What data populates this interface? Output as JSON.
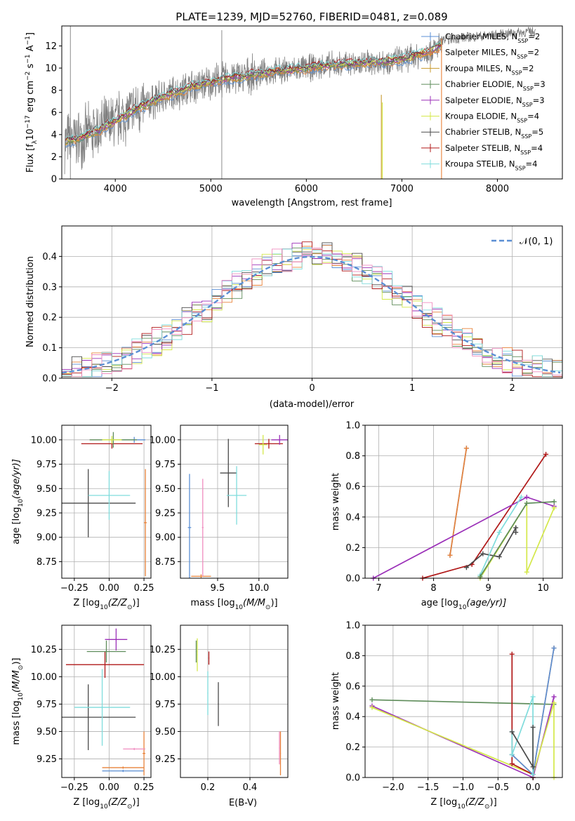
{
  "figure": {
    "title": "PLATE=1239, MJD=52760, FIBERID=0481, z=0.089"
  },
  "chart_data": [
    {
      "id": "spectrum",
      "type": "line",
      "title": "PLATE=1239, MJD=52760, FIBERID=0481, z=0.089",
      "xlabel": "wavelength [Angstrom, rest frame]",
      "ylabel_parts": [
        "Flux [f",
        "λ",
        "10",
        "−17",
        " erg cm",
        "−2",
        " s",
        "−1",
        " A",
        "−1",
        "]"
      ],
      "xlim": [
        3440,
        8680
      ],
      "ylim": [
        0,
        13.8
      ],
      "xticks": [
        "4000",
        "5000",
        "6000",
        "7000",
        "8000"
      ],
      "yticks": [
        "0",
        "2",
        "4",
        "6",
        "8",
        "10",
        "12"
      ],
      "legend_position": "upper right",
      "legend": [
        {
          "name_pre": "Chabrier MILES, N",
          "sub": "SSP",
          "name_post": "=2",
          "color": "#5b8fd4"
        },
        {
          "name_pre": "Salpeter MILES, N",
          "sub": "SSP",
          "name_post": "=2",
          "color": "#e8833a"
        },
        {
          "name_pre": "Kroupa MILES, N",
          "sub": "SSP",
          "name_post": "=2",
          "color": "#c79a2e"
        },
        {
          "name_pre": "Chabrier ELODIE, N",
          "sub": "SSP",
          "name_post": "=3",
          "color": "#5e8c5a"
        },
        {
          "name_pre": "Salpeter ELODIE, N",
          "sub": "SSP",
          "name_post": "=3",
          "color": "#9b30b8"
        },
        {
          "name_pre": "Kroupa ELODIE, N",
          "sub": "SSP",
          "name_post": "=4",
          "color": "#d4e84a"
        },
        {
          "name_pre": "Chabrier STELIB, N",
          "sub": "SSP",
          "name_post": "=5",
          "color": "#4a4a4a"
        },
        {
          "name_pre": "Salpeter STELIB, N",
          "sub": "SSP",
          "name_post": "=4",
          "color": "#b01818"
        },
        {
          "name_pre": "Kroupa STELIB, N",
          "sub": "SSP",
          "name_post": "=4",
          "color": "#7fdcdc"
        }
      ],
      "data_trend": {
        "wavelength": [
          3480,
          3600,
          3800,
          4000,
          4200,
          4500,
          4800,
          5000,
          5200,
          5500,
          5800,
          6000,
          6200,
          6500,
          6800,
          7000,
          7200,
          7400
        ],
        "flux": [
          3.4,
          3.6,
          4.3,
          5.2,
          6.2,
          7.4,
          8.3,
          8.7,
          9.1,
          9.5,
          9.8,
          10.0,
          10.2,
          10.4,
          10.6,
          10.8,
          11.2,
          12.0
        ],
        "observed_tail_wavelength": [
          7400,
          7700,
          8000,
          8200,
          8400
        ],
        "observed_tail_flux": [
          12.5,
          12.8,
          13.0,
          13.2,
          13.3
        ]
      }
    },
    {
      "id": "residuals",
      "type": "line",
      "xlabel": "(data-model)/error",
      "ylabel": "Normed distribution",
      "xlim": [
        -2.5,
        2.5
      ],
      "ylim": [
        0,
        0.5
      ],
      "xticks": [
        "−2",
        "−1",
        "0",
        "1",
        "2"
      ],
      "yticks": [
        "0.0",
        "0.1",
        "0.2",
        "0.3",
        "0.4"
      ],
      "legend_position": "upper right",
      "legend": [
        {
          "name": "𝒩(0, 1)",
          "color": "#5b8fd4"
        }
      ],
      "normal_curve": {
        "mean": 0,
        "sigma": 1
      }
    },
    {
      "id": "age-vs-Z",
      "type": "scatter",
      "xlabel_parts": [
        "Z [log",
        "10",
        "(Z/Z",
        "⊙",
        ")]"
      ],
      "ylabel_parts": [
        "age  [log",
        "10",
        "(age/yr)]"
      ],
      "xlim": [
        -0.34,
        0.3
      ],
      "ylim": [
        8.58,
        10.15
      ],
      "xticks": [
        "−0.25",
        "0.00",
        "0.25"
      ],
      "yticks": [
        "8.75",
        "9.00",
        "9.25",
        "9.50",
        "9.75",
        "10.00"
      ],
      "points": [
        {
          "x": 0.18,
          "xerr": 0.08,
          "y": 10.0,
          "yerr": 0.03,
          "color": "#5b8fd4"
        },
        {
          "x": 0.26,
          "xerr": 0.01,
          "y": 9.15,
          "yerr": 0.55,
          "color": "#e8833a"
        },
        {
          "x": 0.02,
          "xerr": 0.22,
          "y": 9.96,
          "yerr": 0.05,
          "color": "#b01818"
        },
        {
          "x": -0.15,
          "xerr": 0.34,
          "y": 9.35,
          "yerr": 0.35,
          "color": "#4a4a4a"
        },
        {
          "x": 0.03,
          "xerr": 0.17,
          "y": 10.0,
          "yerr": 0.08,
          "color": "#5e8c5a"
        },
        {
          "x": 0.0,
          "xerr": 0.15,
          "y": 9.43,
          "yerr": 0.25,
          "color": "#7fdcdc"
        },
        {
          "x": 0.02,
          "xerr": 0.07,
          "y": 10.0,
          "yerr": 0.04,
          "color": "#d4e84a"
        }
      ]
    },
    {
      "id": "age-vs-mass",
      "type": "scatter",
      "xlabel_parts": [
        "mass [log",
        "10",
        "(M/M",
        "⊙",
        ")]"
      ],
      "xlim": [
        9.05,
        10.35
      ],
      "ylim": [
        8.58,
        10.15
      ],
      "xticks": [
        "9.5",
        "10.0"
      ],
      "yticks": [
        "8.75",
        "9.00",
        "9.25",
        "9.50",
        "9.75",
        "10.00"
      ],
      "points": [
        {
          "x": 9.16,
          "xerr": 0.02,
          "y": 9.1,
          "yerr": 0.55,
          "color": "#5b8fd4"
        },
        {
          "x": 9.3,
          "xerr": 0.12,
          "y": 8.6,
          "yerr": 0.02,
          "color": "#e8833a"
        },
        {
          "x": 9.32,
          "xerr": 0.01,
          "y": 9.1,
          "yerr": 0.5,
          "color": "#f08ec0"
        },
        {
          "x": 10.12,
          "xerr": 0.17,
          "y": 9.96,
          "yerr": 0.05,
          "color": "#b01818"
        },
        {
          "x": 9.63,
          "xerr": 0.1,
          "y": 9.66,
          "yerr": 0.35,
          "color": "#4a4a4a"
        },
        {
          "x": 9.73,
          "xerr": 0.12,
          "y": 9.43,
          "yerr": 0.3,
          "color": "#7fdcdc"
        },
        {
          "x": 10.25,
          "xerr": 0.1,
          "y": 10.0,
          "yerr": 0.05,
          "color": "#9b30b8"
        },
        {
          "x": 10.05,
          "xerr": 0.05,
          "y": 9.95,
          "yerr": 0.1,
          "color": "#d4e84a"
        }
      ]
    },
    {
      "id": "weight-vs-age",
      "type": "line",
      "xlabel_parts": [
        "age  [log",
        "10",
        "(age/yr)]"
      ],
      "ylabel": "mass weight",
      "xlim": [
        6.75,
        10.35
      ],
      "ylim": [
        0,
        1.0
      ],
      "xticks": [
        "7",
        "8",
        "9",
        "10"
      ],
      "yticks": [
        "0.0",
        "0.2",
        "0.4",
        "0.6",
        "0.8",
        "1.0"
      ],
      "series": [
        {
          "color": "#5b8fd4",
          "points": [
            [
              8.3,
              0.15
            ],
            [
              8.6,
              0.85
            ]
          ]
        },
        {
          "color": "#e8833a",
          "points": [
            [
              8.3,
              0.15
            ],
            [
              8.6,
              0.85
            ]
          ]
        },
        {
          "color": "#b01818",
          "points": [
            [
              7.8,
              0.0
            ],
            [
              8.7,
              0.09
            ],
            [
              10.05,
              0.81
            ]
          ]
        },
        {
          "color": "#9b30b8",
          "points": [
            [
              6.9,
              0.0
            ],
            [
              9.7,
              0.53
            ],
            [
              10.2,
              0.47
            ]
          ]
        },
        {
          "color": "#d4e84a",
          "points": [
            [
              8.85,
              0.0
            ],
            [
              9.7,
              0.49
            ],
            [
              9.7,
              0.04
            ],
            [
              10.2,
              0.46
            ]
          ]
        },
        {
          "color": "#4a4a4a",
          "points": [
            [
              8.6,
              0.07
            ],
            [
              8.9,
              0.16
            ],
            [
              9.2,
              0.14
            ],
            [
              9.5,
              0.33
            ],
            [
              9.5,
              0.3
            ]
          ]
        },
        {
          "color": "#7fdcdc",
          "points": [
            [
              8.85,
              0.02
            ],
            [
              9.2,
              0.3
            ],
            [
              9.6,
              0.53
            ]
          ]
        },
        {
          "color": "#5e8c5a",
          "points": [
            [
              8.85,
              0.01
            ],
            [
              9.7,
              0.49
            ],
            [
              10.2,
              0.5
            ]
          ]
        }
      ]
    },
    {
      "id": "mass-vs-Z",
      "type": "scatter",
      "xlabel_parts": [
        "Z [log",
        "10",
        "(Z/Z",
        "⊙",
        ")]"
      ],
      "ylabel_parts": [
        "mass [log",
        "10",
        "(M/M",
        "⊙",
        ")]"
      ],
      "xlim": [
        -0.34,
        0.3
      ],
      "ylim": [
        9.08,
        10.47
      ],
      "xticks": [
        "−0.25",
        "0.00",
        "0.25"
      ],
      "yticks": [
        "9.25",
        "9.50",
        "9.75",
        "10.00",
        "10.25"
      ],
      "points": [
        {
          "x": 0.1,
          "xerr": 0.15,
          "y": 9.14,
          "yerr": 0.01,
          "color": "#5b8fd4"
        },
        {
          "x": 0.1,
          "xerr": 0.15,
          "y": 9.17,
          "yerr": 0.01,
          "color": "#e8833a"
        },
        {
          "x": 0.25,
          "xerr": 0.01,
          "y": 9.3,
          "yerr": 0.2,
          "color": "#e8833a"
        },
        {
          "x": 0.18,
          "xerr": 0.08,
          "y": 9.34,
          "yerr": 0.01,
          "color": "#f08ec0"
        },
        {
          "x": -0.03,
          "xerr": 0.28,
          "y": 10.11,
          "yerr": 0.12,
          "color": "#b01818"
        },
        {
          "x": -0.15,
          "xerr": 0.34,
          "y": 9.63,
          "yerr": 0.3,
          "color": "#4a4a4a"
        },
        {
          "x": -0.05,
          "xerr": 0.2,
          "y": 9.72,
          "yerr": 0.35,
          "color": "#7fdcdc"
        },
        {
          "x": -0.02,
          "xerr": 0.14,
          "y": 10.23,
          "yerr": 0.1,
          "color": "#5e8c5a"
        },
        {
          "x": 0.05,
          "xerr": 0.08,
          "y": 10.34,
          "yerr": 0.1,
          "color": "#9b30b8"
        }
      ]
    },
    {
      "id": "mass-vs-EBV",
      "type": "scatter",
      "xlabel": "E(B-V)",
      "xlim": [
        0.07,
        0.58
      ],
      "ylim": [
        9.08,
        10.47
      ],
      "xticks": [
        "0.2",
        "0.4"
      ],
      "yticks": [
        "9.25",
        "9.50",
        "9.75",
        "10.00",
        "10.25"
      ],
      "points": [
        {
          "x": 0.545,
          "xerr": 0.002,
          "y": 9.3,
          "yerr": 0.2,
          "color": "#e8833a"
        },
        {
          "x": 0.54,
          "xerr": 0.002,
          "y": 9.35,
          "yerr": 0.15,
          "color": "#f08ec0"
        },
        {
          "x": 0.25,
          "xerr": 0.002,
          "y": 9.75,
          "yerr": 0.2,
          "color": "#4a4a4a"
        },
        {
          "x": 0.2,
          "xerr": 0.002,
          "y": 9.85,
          "yerr": 0.2,
          "color": "#7fdcdc"
        },
        {
          "x": 0.205,
          "xerr": 0.002,
          "y": 10.17,
          "yerr": 0.06,
          "color": "#b01818"
        },
        {
          "x": 0.15,
          "xerr": 0.002,
          "y": 10.2,
          "yerr": 0.15,
          "color": "#d4e84a"
        },
        {
          "x": 0.145,
          "xerr": 0.002,
          "y": 10.23,
          "yerr": 0.1,
          "color": "#5e8c5a"
        }
      ]
    },
    {
      "id": "weight-vs-Z",
      "type": "line",
      "xlabel_parts": [
        "Z [log",
        "10",
        "(Z/Z",
        "⊙",
        ")]"
      ],
      "ylabel": "mass weight",
      "xlim": [
        -2.4,
        0.42
      ],
      "ylim": [
        0,
        1.0
      ],
      "xticks": [
        "−2.0",
        "−1.5",
        "−1.0",
        "−0.5",
        "0.0"
      ],
      "yticks": [
        "0.0",
        "0.2",
        "0.4",
        "0.6",
        "0.8",
        "1.0"
      ],
      "series": [
        {
          "color": "#5e8c5a",
          "points": [
            [
              -2.3,
              0.51
            ],
            [
              0.3,
              0.48
            ]
          ]
        },
        {
          "color": "#9b30b8",
          "points": [
            [
              -2.3,
              0.47
            ],
            [
              0.0,
              0.0
            ],
            [
              0.3,
              0.53
            ]
          ]
        },
        {
          "color": "#d4e84a",
          "points": [
            [
              -2.3,
              0.46
            ],
            [
              0.0,
              0.02
            ],
            [
              0.3,
              0.49
            ],
            [
              0.3,
              0.0
            ]
          ]
        },
        {
          "color": "#b01818",
          "points": [
            [
              -0.3,
              0.81
            ],
            [
              -0.3,
              0.09
            ],
            [
              0.0,
              0.02
            ],
            [
              0.0,
              0.0
            ]
          ]
        },
        {
          "color": "#e8833a",
          "points": [
            [
              -0.3,
              0.15
            ],
            [
              0.0,
              0.02
            ],
            [
              0.3,
              0.85
            ]
          ]
        },
        {
          "color": "#5b8fd4",
          "points": [
            [
              -0.3,
              0.15
            ],
            [
              0.0,
              0.02
            ],
            [
              0.3,
              0.85
            ]
          ]
        },
        {
          "color": "#7fdcdc",
          "points": [
            [
              -0.3,
              0.3
            ],
            [
              -0.3,
              0.15
            ],
            [
              0.0,
              0.53
            ],
            [
              0.0,
              0.02
            ]
          ]
        },
        {
          "color": "#4a4a4a",
          "points": [
            [
              -0.3,
              0.3
            ],
            [
              0.0,
              0.07
            ],
            [
              0.0,
              0.33
            ]
          ]
        }
      ]
    }
  ]
}
